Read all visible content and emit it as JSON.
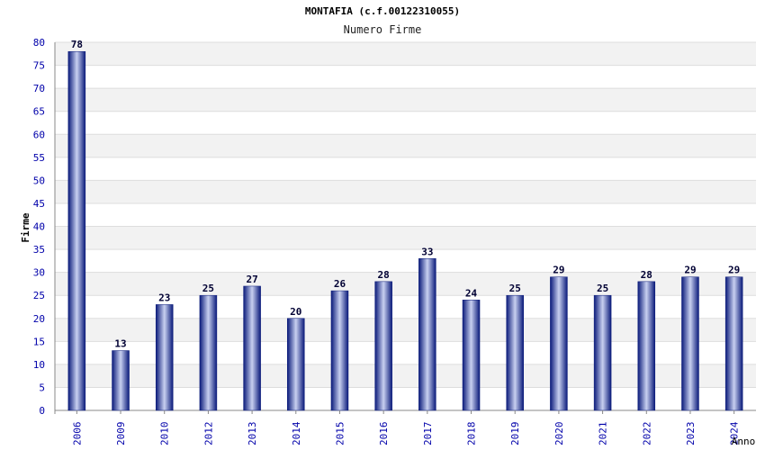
{
  "chart_data": {
    "type": "bar",
    "title": "MONTAFIA (c.f.00122310055)",
    "subtitle": "Numero Firme",
    "xlabel": "Anno",
    "ylabel": "Firme",
    "categories": [
      "2006",
      "2009",
      "2010",
      "2012",
      "2013",
      "2014",
      "2015",
      "2016",
      "2017",
      "2018",
      "2019",
      "2020",
      "2021",
      "2022",
      "2023",
      "2024"
    ],
    "values": [
      78,
      13,
      23,
      25,
      27,
      20,
      26,
      28,
      33,
      24,
      25,
      29,
      25,
      28,
      29,
      29
    ],
    "ylim": [
      0,
      80
    ],
    "ytick_step": 5,
    "grid": true,
    "data_labels": true,
    "colors": {
      "bar_dark": "#0a1a7a",
      "bar_light": "#c8d0f0",
      "band": "#f2f2f2",
      "grid": "#dddddd",
      "axis_text": "#0000aa",
      "label_text": "#000033"
    }
  }
}
